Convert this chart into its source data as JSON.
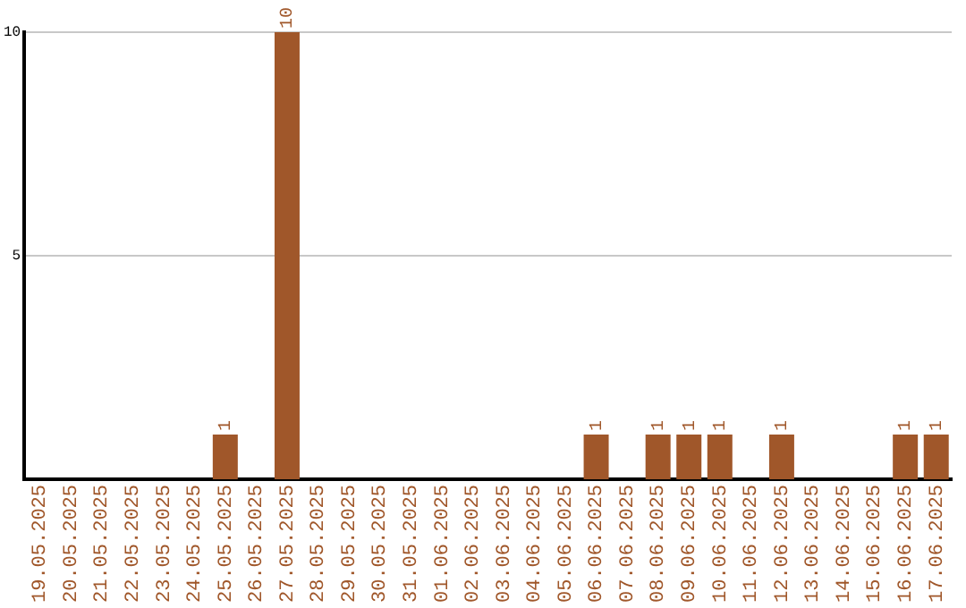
{
  "chart_data": {
    "type": "bar",
    "categories": [
      "19.05.2025",
      "20.05.2025",
      "21.05.2025",
      "22.05.2025",
      "23.05.2025",
      "24.05.2025",
      "25.05.2025",
      "26.05.2025",
      "27.05.2025",
      "28.05.2025",
      "29.05.2025",
      "30.05.2025",
      "31.05.2025",
      "01.06.2025",
      "02.06.2025",
      "03.06.2025",
      "04.06.2025",
      "05.06.2025",
      "06.06.2025",
      "07.06.2025",
      "08.06.2025",
      "09.06.2025",
      "10.06.2025",
      "11.06.2025",
      "12.06.2025",
      "13.06.2025",
      "14.06.2025",
      "15.06.2025",
      "16.06.2025",
      "17.06.2025"
    ],
    "values": [
      0,
      0,
      0,
      0,
      0,
      0,
      1,
      0,
      10,
      0,
      0,
      0,
      0,
      0,
      0,
      0,
      0,
      0,
      1,
      0,
      1,
      1,
      1,
      0,
      1,
      0,
      0,
      0,
      1,
      1
    ],
    "value_labels": [
      null,
      null,
      null,
      null,
      null,
      null,
      "1",
      null,
      "10",
      null,
      null,
      null,
      null,
      null,
      null,
      null,
      null,
      null,
      "1",
      null,
      "1",
      "1",
      "1",
      null,
      "1",
      null,
      null,
      null,
      "1",
      "1"
    ],
    "color": "#a0572a",
    "ylim": [
      0,
      10
    ],
    "yticks": [
      5,
      10
    ],
    "grid": "y",
    "legend": false
  }
}
